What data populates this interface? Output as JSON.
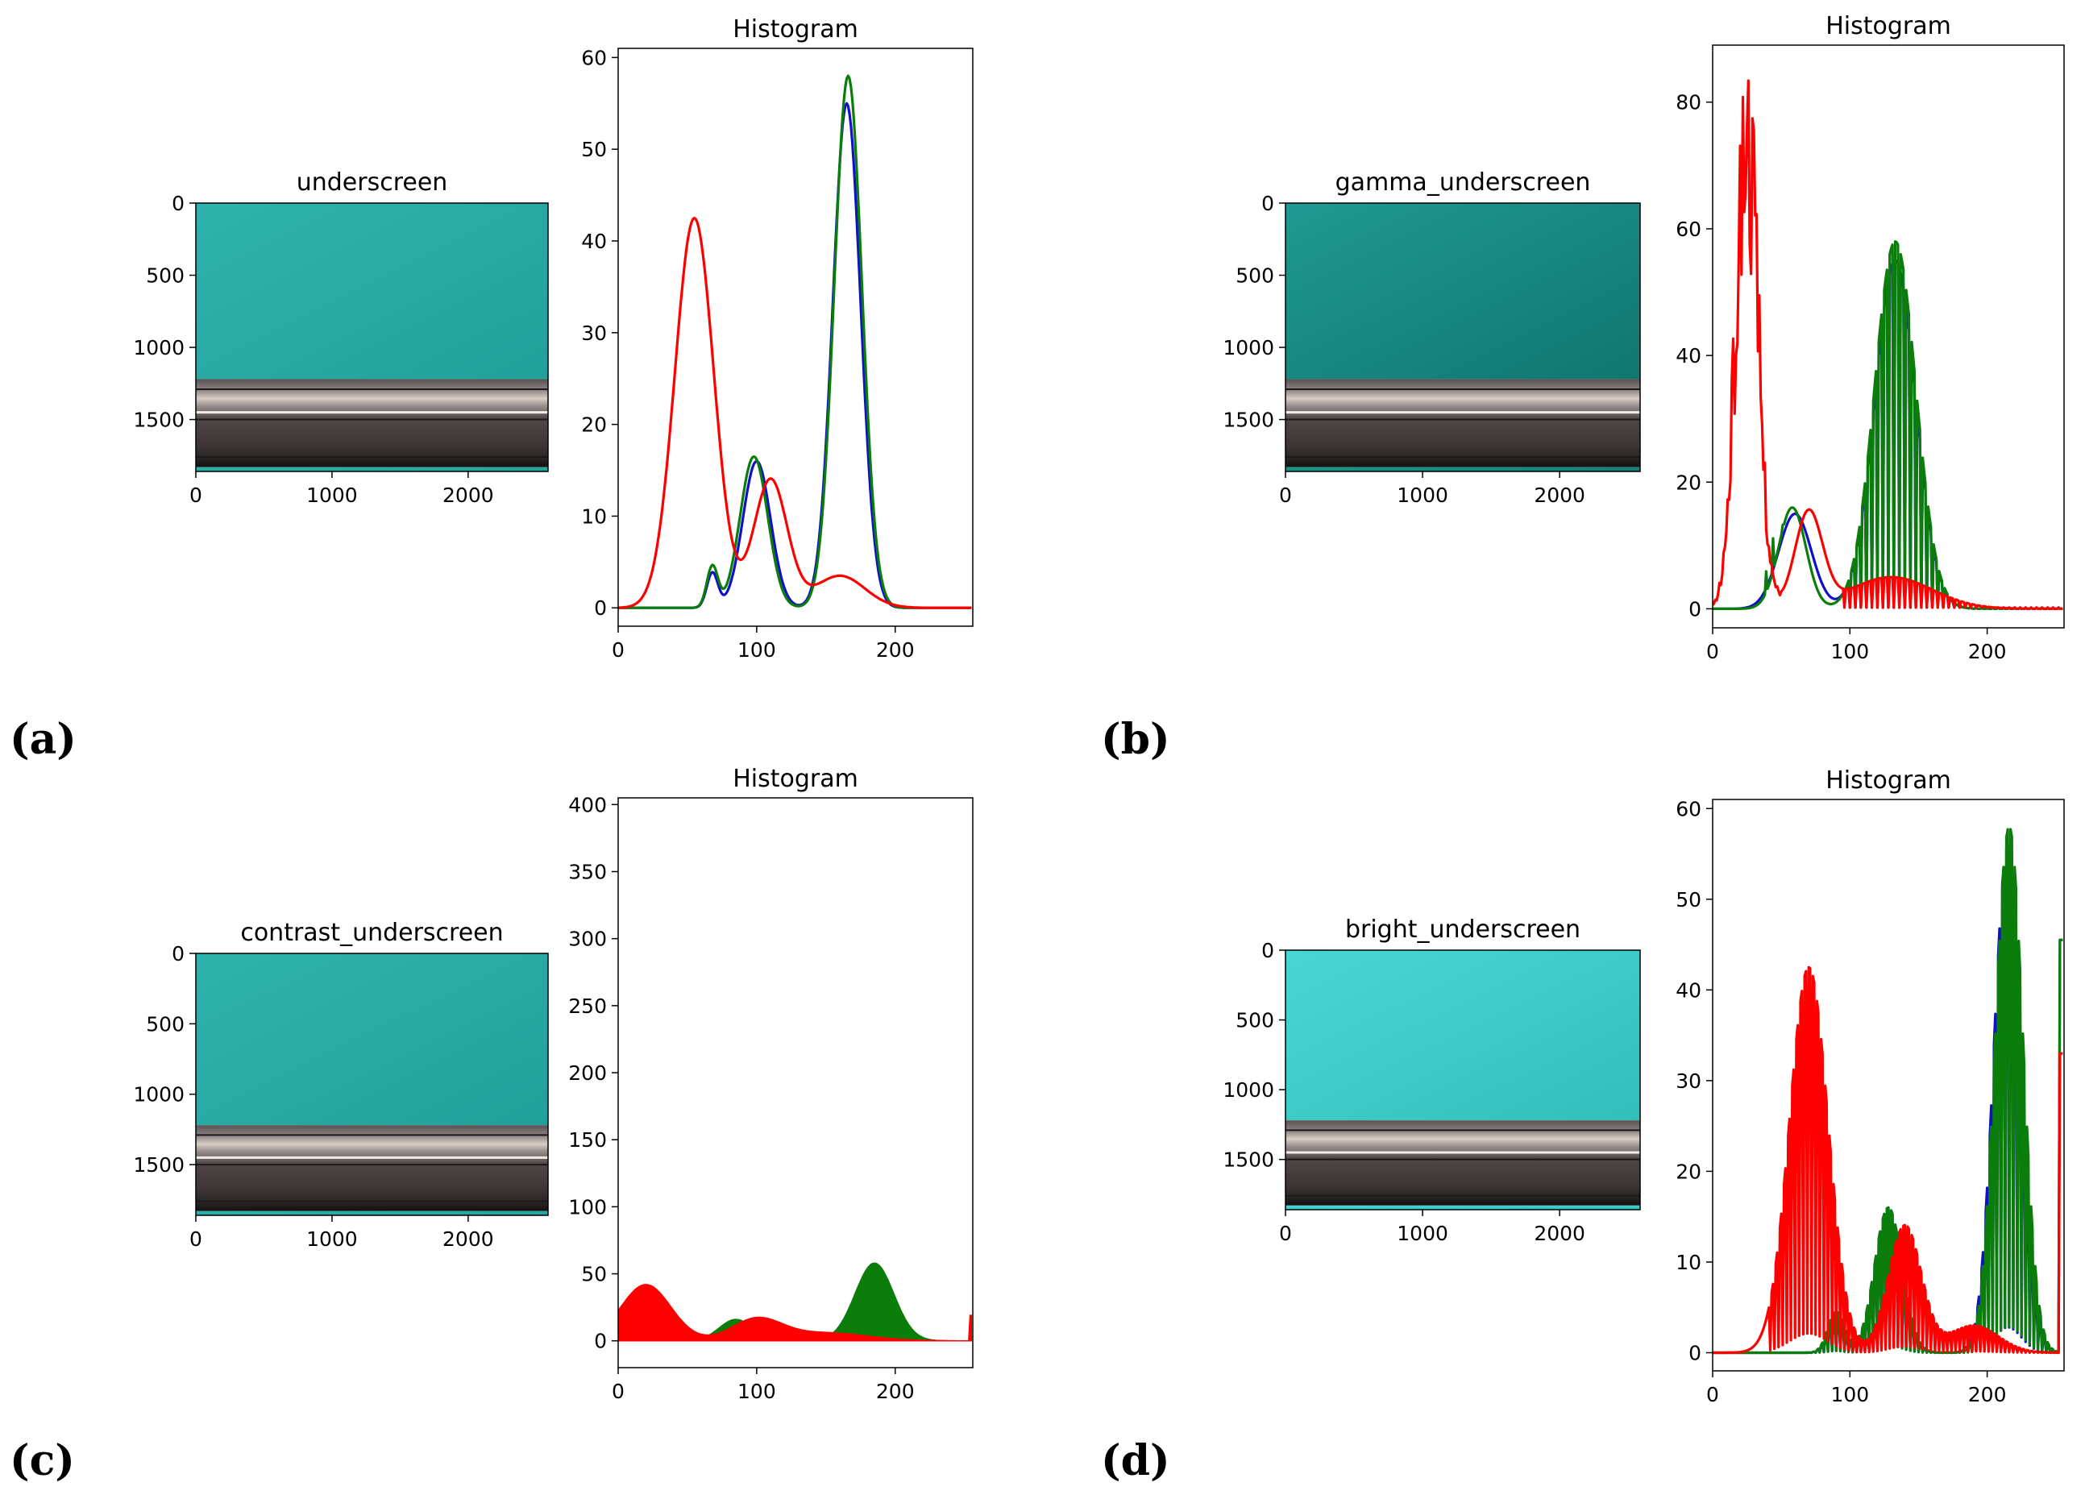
{
  "figure": {
    "panels": [
      {
        "label": "(a)",
        "image_title": "underscreen",
        "variant": "normal"
      },
      {
        "label": "(b)",
        "image_title": "gamma_underscreen",
        "variant": "gamma"
      },
      {
        "label": "(c)",
        "image_title": "contrast_underscreen",
        "variant": "contrast"
      },
      {
        "label": "(d)",
        "image_title": "bright_underscreen",
        "variant": "bright"
      }
    ],
    "image_axes": {
      "x_ticks": [
        0,
        1000,
        2000
      ],
      "y_ticks": [
        0,
        500,
        1000,
        1500
      ],
      "x_range": [
        0,
        2587
      ],
      "y_range": [
        0,
        1860
      ]
    }
  },
  "colors": {
    "blue": "#1010c8",
    "green": "#0a7d0a",
    "red": "#ff0000",
    "cyan_top": "#2aaaa3",
    "cyan_bottom": "#23a9a4",
    "metal_dark": "#3b3434",
    "metal_mid": "#6a6262",
    "metal_light": "#cfc5bc"
  },
  "chart_data": [
    {
      "type": "line",
      "title": "Histogram",
      "xlim": [
        0,
        256
      ],
      "ylim": [
        -2,
        61
      ],
      "x_ticks": [
        0,
        100,
        200
      ],
      "y_ticks": [
        0,
        10,
        20,
        30,
        40,
        50,
        60
      ],
      "series": [
        {
          "name": "blue",
          "color": "blue",
          "style": "smooth",
          "peaks": [
            [
              68,
              3.8,
              4
            ],
            [
              100,
              16,
              10
            ],
            [
              165,
              55,
              10
            ]
          ]
        },
        {
          "name": "green",
          "color": "green",
          "style": "smooth",
          "peaks": [
            [
              68,
              4.5,
              4
            ],
            [
              98,
              16.5,
              10
            ],
            [
              166,
              58,
              10
            ]
          ]
        },
        {
          "name": "red",
          "color": "red",
          "style": "smooth",
          "peaks": [
            [
              55,
              42.5,
              14
            ],
            [
              110,
              14,
              12
            ],
            [
              160,
              3.5,
              18
            ]
          ]
        }
      ]
    },
    {
      "type": "line",
      "title": "Histogram",
      "xlim": [
        0,
        256
      ],
      "ylim": [
        -3,
        89
      ],
      "x_ticks": [
        0,
        100,
        200
      ],
      "y_ticks": [
        0,
        20,
        40,
        60,
        80
      ],
      "series": [
        {
          "name": "blue",
          "color": "blue",
          "style": "spiky",
          "comb_start": 100,
          "peaks": [
            [
              60,
              15,
              12
            ],
            [
              133,
              55,
              15
            ]
          ]
        },
        {
          "name": "green",
          "color": "green",
          "style": "spiky",
          "comb_start": 100,
          "peaks": [
            [
              58,
              16,
              10
            ],
            [
              133,
              58,
              15
            ]
          ]
        },
        {
          "name": "red",
          "color": "red",
          "style": "spiky",
          "comb_start": 95,
          "peaks": [
            [
              25,
              75,
              8
            ],
            [
              70,
              15,
              10
            ],
            [
              130,
              5,
              30
            ]
          ]
        }
      ]
    },
    {
      "type": "area",
      "title": "Histogram",
      "xlim": [
        0,
        256
      ],
      "ylim": [
        -20,
        405
      ],
      "x_ticks": [
        0,
        100,
        200
      ],
      "y_ticks": [
        0,
        50,
        100,
        150,
        200,
        250,
        300,
        350,
        400
      ],
      "series": [
        {
          "name": "blue",
          "color": "blue",
          "style": "filled",
          "peaks": [
            [
              85,
              15,
              12
            ],
            [
              185,
              56,
              14
            ]
          ]
        },
        {
          "name": "green",
          "color": "green",
          "style": "filled",
          "peaks": [
            [
              85,
              16,
              12
            ],
            [
              185,
              58,
              14
            ]
          ]
        },
        {
          "name": "red",
          "color": "red",
          "style": "filled",
          "peaks": [
            [
              20,
              42,
              18
            ],
            [
              100,
              16,
              18
            ],
            [
              150,
              6,
              30
            ]
          ]
        }
      ]
    },
    {
      "type": "line",
      "title": "Histogram",
      "xlim": [
        0,
        256
      ],
      "ylim": [
        -2,
        61
      ],
      "x_ticks": [
        0,
        100,
        200
      ],
      "y_ticks": [
        0,
        10,
        20,
        30,
        40,
        50,
        60
      ],
      "series": [
        {
          "name": "blue",
          "color": "blue",
          "style": "comb",
          "end_value": 45.5,
          "peaks": [
            [
              90,
              4,
              6
            ],
            [
              128,
              16,
              10
            ],
            [
              215,
              56,
              10
            ]
          ]
        },
        {
          "name": "green",
          "color": "green",
          "style": "comb",
          "end_value": 45.5,
          "peaks": [
            [
              90,
              4.5,
              6
            ],
            [
              128,
              16,
              10
            ],
            [
              216,
              58,
              10
            ]
          ]
        },
        {
          "name": "red",
          "color": "red",
          "style": "comb",
          "end_value": 33,
          "peaks": [
            [
              70,
              42.5,
              14
            ],
            [
              140,
              14,
              12
            ],
            [
              190,
              3,
              18
            ]
          ]
        }
      ]
    }
  ]
}
